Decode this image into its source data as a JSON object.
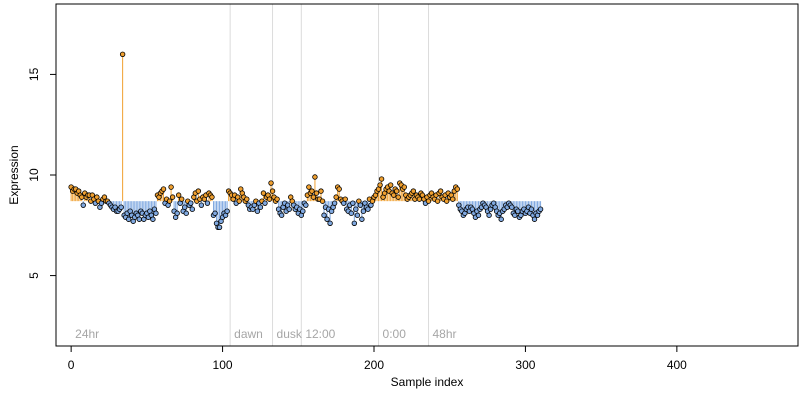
{
  "chart_data": {
    "type": "scatter",
    "title": "",
    "xlabel": "Sample index",
    "ylabel": "Expression",
    "xlim": [
      -10,
      480
    ],
    "ylim": [
      1.5,
      18.5
    ],
    "xticks": [
      0,
      100,
      200,
      300,
      400
    ],
    "yticks": [
      5,
      10,
      15
    ],
    "baseline": 8.7,
    "colors": {
      "above": "#F0A030",
      "below": "#7FA8E0",
      "marker_edge": "#000000",
      "segment_line": "#dcdcdc",
      "segment_label": "#a6a6a6"
    },
    "segments": [
      {
        "label": "24hr",
        "x": 0
      },
      {
        "label": "dawn",
        "x": 105
      },
      {
        "label": "dusk",
        "x": 133
      },
      {
        "label": "12:00",
        "x": 152
      },
      {
        "label": "0:00",
        "x": 203
      },
      {
        "label": "48hr",
        "x": 236
      }
    ],
    "values": [
      9.4,
      9.2,
      9.3,
      9.3,
      9.1,
      9.2,
      9.0,
      8.9,
      8.5,
      9.1,
      8.9,
      9.0,
      9.0,
      8.7,
      9.0,
      8.8,
      8.6,
      8.9,
      8.7,
      8.4,
      8.6,
      8.8,
      8.9,
      8.7,
      8.7,
      8.6,
      8.5,
      8.4,
      8.3,
      8.4,
      8.2,
      8.2,
      8.3,
      8.4,
      16.0,
      8.0,
      7.9,
      8.1,
      7.8,
      8.2,
      8.0,
      7.7,
      7.9,
      8.1,
      8.0,
      7.8,
      8.2,
      8.1,
      7.8,
      8.0,
      8.1,
      7.9,
      8.2,
      8.0,
      7.8,
      8.3,
      8.1,
      9.0,
      8.9,
      9.1,
      9.2,
      9.3,
      8.6,
      8.8,
      8.5,
      8.7,
      9.4,
      8.9,
      8.2,
      7.9,
      8.1,
      9.0,
      8.6,
      8.8,
      8.2,
      8.4,
      8.1,
      8.7,
      8.5,
      8.6,
      8.3,
      8.9,
      9.1,
      8.7,
      9.2,
      8.8,
      8.5,
      8.9,
      8.8,
      9.0,
      8.6,
      9.1,
      9.0,
      8.9,
      8.0,
      8.1,
      7.6,
      7.4,
      7.4,
      7.7,
      7.9,
      8.1,
      8.0,
      8.2,
      9.2,
      9.1,
      9.0,
      8.8,
      9.0,
      8.6,
      8.9,
      8.7,
      9.3,
      9.1,
      8.9,
      8.7,
      8.8,
      8.5,
      8.3,
      8.4,
      8.3,
      8.5,
      8.7,
      8.2,
      8.6,
      8.4,
      8.7,
      9.1,
      8.6,
      8.9,
      9.0,
      8.8,
      9.6,
      9.2,
      8.9,
      8.7,
      8.8,
      8.3,
      8.1,
      8.0,
      8.4,
      8.6,
      8.2,
      8.5,
      8.3,
      8.9,
      8.7,
      8.5,
      8.3,
      8.4,
      8.1,
      8.3,
      8.0,
      8.2,
      8.6,
      8.5,
      9.0,
      9.4,
      9.1,
      9.2,
      8.9,
      9.9,
      9.1,
      8.8,
      8.8,
      9.2,
      8.7,
      8.0,
      8.4,
      7.8,
      8.3,
      7.6,
      8.2,
      8.4,
      8.6,
      8.9,
      9.4,
      9.3,
      8.8,
      8.7,
      8.6,
      8.8,
      8.3,
      8.2,
      8.5,
      8.1,
      8.6,
      7.6,
      8.3,
      8.0,
      8.7,
      8.5,
      7.8,
      8.2,
      8.6,
      8.4,
      8.3,
      8.8,
      8.5,
      8.7,
      8.9,
      9.0,
      9.2,
      9.3,
      9.5,
      9.8,
      8.9,
      9.1,
      9.3,
      9.4,
      9.2,
      9.5,
      9.1,
      9.0,
      9.3,
      9.2,
      8.9,
      9.6,
      9.5,
      9.3,
      9.4,
      9.0,
      8.8,
      8.9,
      9.0,
      9.1,
      9.2,
      8.8,
      9.0,
      8.9,
      8.8,
      9.1,
      9.0,
      8.8,
      8.6,
      8.9,
      8.7,
      9.0,
      9.1,
      8.9,
      8.8,
      9.0,
      8.7,
      9.1,
      9.2,
      8.9,
      8.8,
      9.0,
      8.7,
      9.1,
      8.9,
      9.0,
      8.8,
      9.2,
      9.4,
      9.3,
      8.5,
      8.3,
      8.2,
      8.0,
      8.1,
      8.3,
      8.4,
      8.2,
      8.4,
      8.3,
      8.1,
      7.9,
      8.2,
      8.0,
      8.3,
      8.4,
      8.6,
      8.5,
      8.4,
      8.2,
      8.0,
      8.3,
      8.5,
      8.6,
      8.4,
      8.2,
      8.0,
      8.1,
      7.8,
      8.2,
      8.3,
      8.5,
      8.4,
      8.6,
      8.5,
      8.4,
      8.1,
      8.0,
      8.3,
      8.2,
      7.9,
      8.0,
      8.2,
      8.3,
      8.1,
      8.2,
      8.4,
      8.1,
      8.3,
      8.0,
      7.8,
      8.1,
      8.0,
      8.2,
      8.3
    ]
  }
}
